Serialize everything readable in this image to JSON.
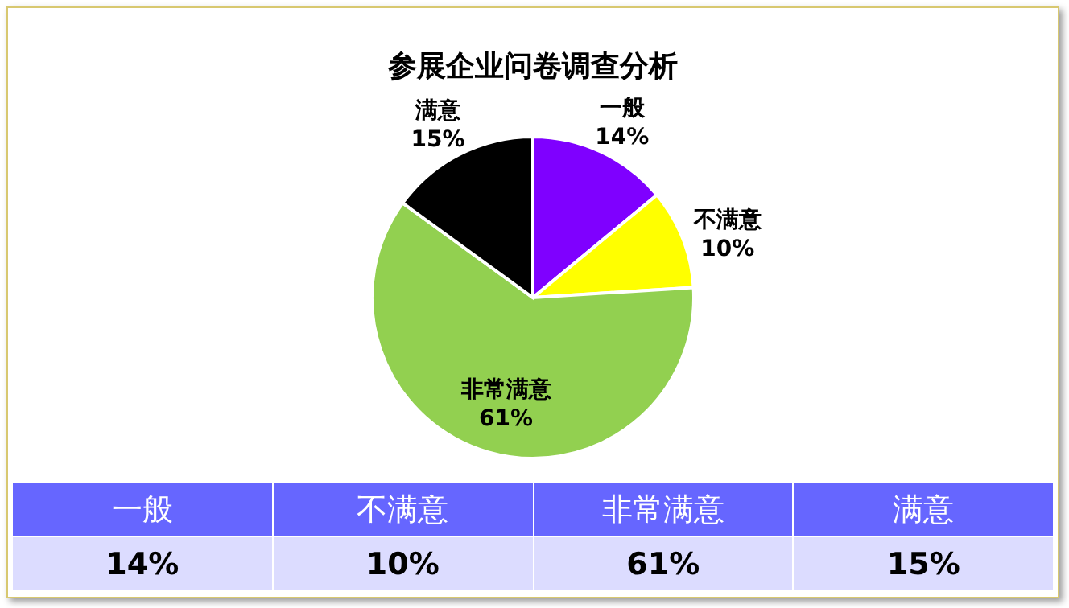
{
  "chart_data": {
    "type": "pie",
    "title": "参展企业问卷调查分析",
    "categories": [
      "一般",
      "不满意",
      "非常满意",
      "满意"
    ],
    "values": [
      14,
      10,
      61,
      15
    ],
    "colors": [
      "#7f00ff",
      "#ffff00",
      "#92d050",
      "#000000"
    ],
    "value_labels": [
      "14%",
      "10%",
      "61%",
      "15%"
    ]
  }
}
